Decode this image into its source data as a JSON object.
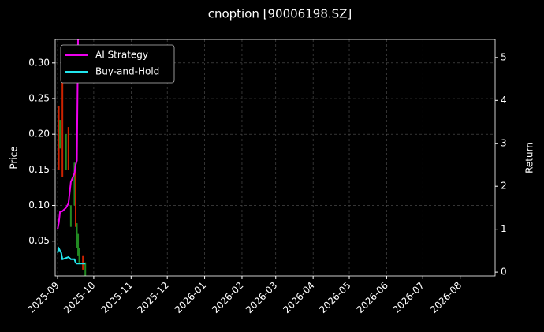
{
  "chart_data": {
    "type": "candlestick",
    "title": "cnoption [90006198.SZ]",
    "ylabel": "Price",
    "y2label": "Return",
    "xlim": [
      "2025-08-30",
      "2026-08-30"
    ],
    "xticks": [
      {
        "value": "2025-09-01",
        "label": "2025-09"
      },
      {
        "value": "2025-10-01",
        "label": "2025-10"
      },
      {
        "value": "2025-11-01",
        "label": "2025-11"
      },
      {
        "value": "2025-12-01",
        "label": "2025-12"
      },
      {
        "value": "2026-01-01",
        "label": "2026-01"
      },
      {
        "value": "2026-02-01",
        "label": "2026-02"
      },
      {
        "value": "2026-03-01",
        "label": "2026-03"
      },
      {
        "value": "2026-04-01",
        "label": "2026-04"
      },
      {
        "value": "2026-05-01",
        "label": "2026-05"
      },
      {
        "value": "2026-06-01",
        "label": "2026-06"
      },
      {
        "value": "2026-07-01",
        "label": "2026-07"
      },
      {
        "value": "2026-08-01",
        "label": "2026-08"
      }
    ],
    "ylim": [
      0.001,
      0.333
    ],
    "yticks": [
      {
        "value": 0.05,
        "label": "0.05"
      },
      {
        "value": 0.1,
        "label": "0.10"
      },
      {
        "value": 0.15,
        "label": "0.15"
      },
      {
        "value": 0.2,
        "label": "0.20"
      },
      {
        "value": 0.25,
        "label": "0.25"
      },
      {
        "value": 0.3,
        "label": "0.30"
      }
    ],
    "y2lim": [
      -0.09,
      5.42
    ],
    "y2ticks": [
      0,
      1,
      2,
      3,
      4,
      5
    ],
    "grid": true,
    "legend": "upper left",
    "up_color": "#228b22",
    "down_color": "#cc2200",
    "candles": {
      "x": [
        "2025-09-02",
        "2025-09-03",
        "2025-09-05",
        "2025-09-08",
        "2025-09-10",
        "2025-09-12",
        "2025-09-15",
        "2025-09-16",
        "2025-09-17",
        "2025-09-18",
        "2025-09-19",
        "2025-09-22",
        "2025-09-24"
      ],
      "open": [
        0.24,
        0.18,
        0.28,
        0.15,
        0.21,
        0.07,
        0.1,
        0.15,
        0.04,
        0.03,
        0.02,
        0.03,
        0.0
      ],
      "high": [
        0.24,
        0.22,
        0.28,
        0.2,
        0.21,
        0.1,
        0.16,
        0.15,
        0.075,
        0.06,
        0.04,
        0.03,
        0.02
      ],
      "low": [
        0.15,
        0.18,
        0.14,
        0.15,
        0.15,
        0.07,
        0.1,
        0.07,
        0.04,
        0.03,
        0.02,
        0.01,
        0.0
      ],
      "close": [
        0.15,
        0.22,
        0.14,
        0.2,
        0.15,
        0.1,
        0.16,
        0.07,
        0.075,
        0.06,
        0.04,
        0.01,
        0.02
      ]
    },
    "series": [
      {
        "name": "AI Strategy",
        "color": "#ee00ee",
        "axis": "y2",
        "x": [
          "2025-09-01",
          "2025-09-02",
          "2025-09-03",
          "2025-09-05",
          "2025-09-08",
          "2025-09-10",
          "2025-09-12",
          "2025-09-15",
          "2025-09-16",
          "2025-09-17",
          "2025-09-18"
        ],
        "values": [
          1.0,
          1.15,
          1.4,
          1.42,
          1.5,
          1.6,
          2.1,
          2.3,
          2.5,
          2.6,
          5.5
        ]
      },
      {
        "name": "Buy-and-Hold",
        "color": "#22e6ee",
        "axis": "y2",
        "x": [
          "2025-09-01",
          "2025-09-02",
          "2025-09-03",
          "2025-09-04",
          "2025-09-05",
          "2025-09-08",
          "2025-09-10",
          "2025-09-12",
          "2025-09-15",
          "2025-09-16",
          "2025-09-17",
          "2025-09-22",
          "2025-09-24"
        ],
        "values": [
          0.45,
          0.55,
          0.5,
          0.45,
          0.3,
          0.33,
          0.35,
          0.3,
          0.3,
          0.22,
          0.2,
          0.2,
          0.2
        ]
      }
    ]
  }
}
